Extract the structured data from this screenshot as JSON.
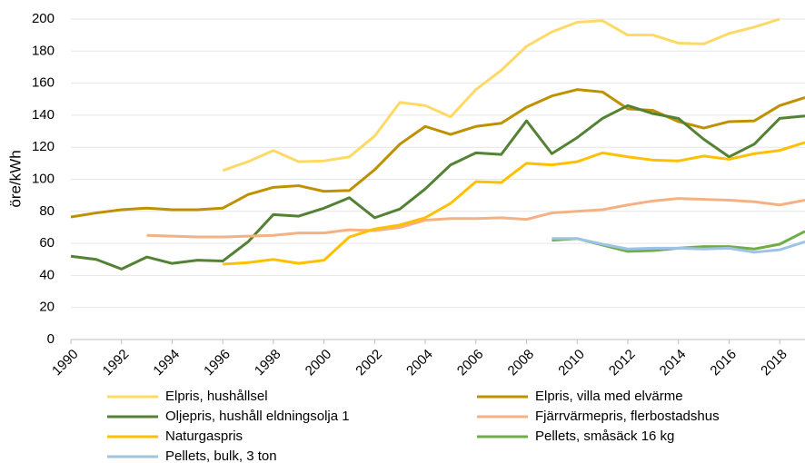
{
  "chart_data": {
    "type": "line",
    "y_label": "öre/kWh",
    "x": [
      1990,
      1991,
      1992,
      1993,
      1994,
      1995,
      1996,
      1997,
      1998,
      1999,
      2000,
      2001,
      2002,
      2003,
      2004,
      2005,
      2006,
      2007,
      2008,
      2009,
      2010,
      2011,
      2012,
      2013,
      2014,
      2015,
      2016,
      2017,
      2018,
      2019
    ],
    "xlim": [
      1990,
      2019
    ],
    "xticks": [
      1990,
      1992,
      1994,
      1996,
      1998,
      2000,
      2002,
      2004,
      2006,
      2008,
      2010,
      2012,
      2014,
      2016,
      2018
    ],
    "ylim": [
      0,
      200
    ],
    "yticks": [
      0,
      20,
      40,
      60,
      80,
      100,
      120,
      140,
      160,
      180,
      200
    ],
    "grid": true,
    "series": [
      {
        "name": "Elpris, hushållsel",
        "color": "#ffd966",
        "values": [
          null,
          null,
          null,
          null,
          null,
          null,
          105.5,
          111,
          118,
          111,
          111.5,
          114,
          127,
          148,
          146,
          139,
          156,
          168,
          183,
          192,
          198,
          199,
          190,
          190,
          185,
          184.5,
          191,
          195,
          200,
          null
        ]
      },
      {
        "name": "Elpris, villa med elvärme",
        "color": "#bf9000",
        "values": [
          76.5,
          79,
          81,
          82,
          81,
          81,
          82,
          90.5,
          95,
          96,
          92.5,
          93,
          106,
          122,
          133,
          128,
          133,
          135,
          145,
          152,
          156,
          154.5,
          144,
          143,
          136,
          132,
          136,
          136.5,
          146,
          151
        ]
      },
      {
        "name": "Oljepris, hushåll eldningsolja 1",
        "color": "#548235",
        "values": [
          52,
          50,
          44,
          51.5,
          47.5,
          49.5,
          49,
          61,
          78,
          77,
          82,
          88.5,
          76,
          81.5,
          94,
          109,
          116.5,
          115.5,
          136.5,
          116,
          126,
          138,
          146,
          141,
          138,
          125,
          114,
          122,
          138,
          139.5
        ]
      },
      {
        "name": "Fjärrvärmepris, flerbostadshus",
        "color": "#f4b183",
        "values": [
          null,
          null,
          null,
          65,
          64.5,
          64,
          64,
          64.5,
          65,
          66.5,
          66.5,
          68.5,
          68,
          70,
          74.5,
          75.5,
          75.5,
          76,
          75,
          79,
          80,
          81,
          84,
          86.5,
          88,
          87.5,
          87,
          86,
          84,
          87
        ]
      },
      {
        "name": "Naturgaspris",
        "color": "#ffc000",
        "values": [
          null,
          null,
          null,
          null,
          null,
          null,
          47,
          48,
          50,
          47.5,
          49.5,
          64,
          69,
          71.5,
          76,
          85,
          98.5,
          98,
          110,
          109,
          111,
          116.5,
          114,
          112,
          111.5,
          114.5,
          112.5,
          116,
          118,
          123
        ]
      },
      {
        "name": "Pellets, småsäck 16 kg",
        "color": "#70ad47",
        "values": [
          null,
          null,
          null,
          null,
          null,
          null,
          null,
          null,
          null,
          null,
          null,
          null,
          null,
          null,
          null,
          null,
          null,
          null,
          null,
          62,
          63,
          59,
          55,
          55.5,
          57,
          58,
          58,
          56.5,
          59.5,
          67.5
        ]
      },
      {
        "name": "Pellets, bulk, 3 ton",
        "color": "#9dc3e6",
        "values": [
          null,
          null,
          null,
          null,
          null,
          null,
          null,
          null,
          null,
          null,
          null,
          null,
          null,
          null,
          null,
          null,
          null,
          null,
          null,
          63,
          63,
          59.5,
          56.5,
          57,
          57,
          56.5,
          57,
          54.5,
          56,
          61
        ]
      }
    ]
  }
}
